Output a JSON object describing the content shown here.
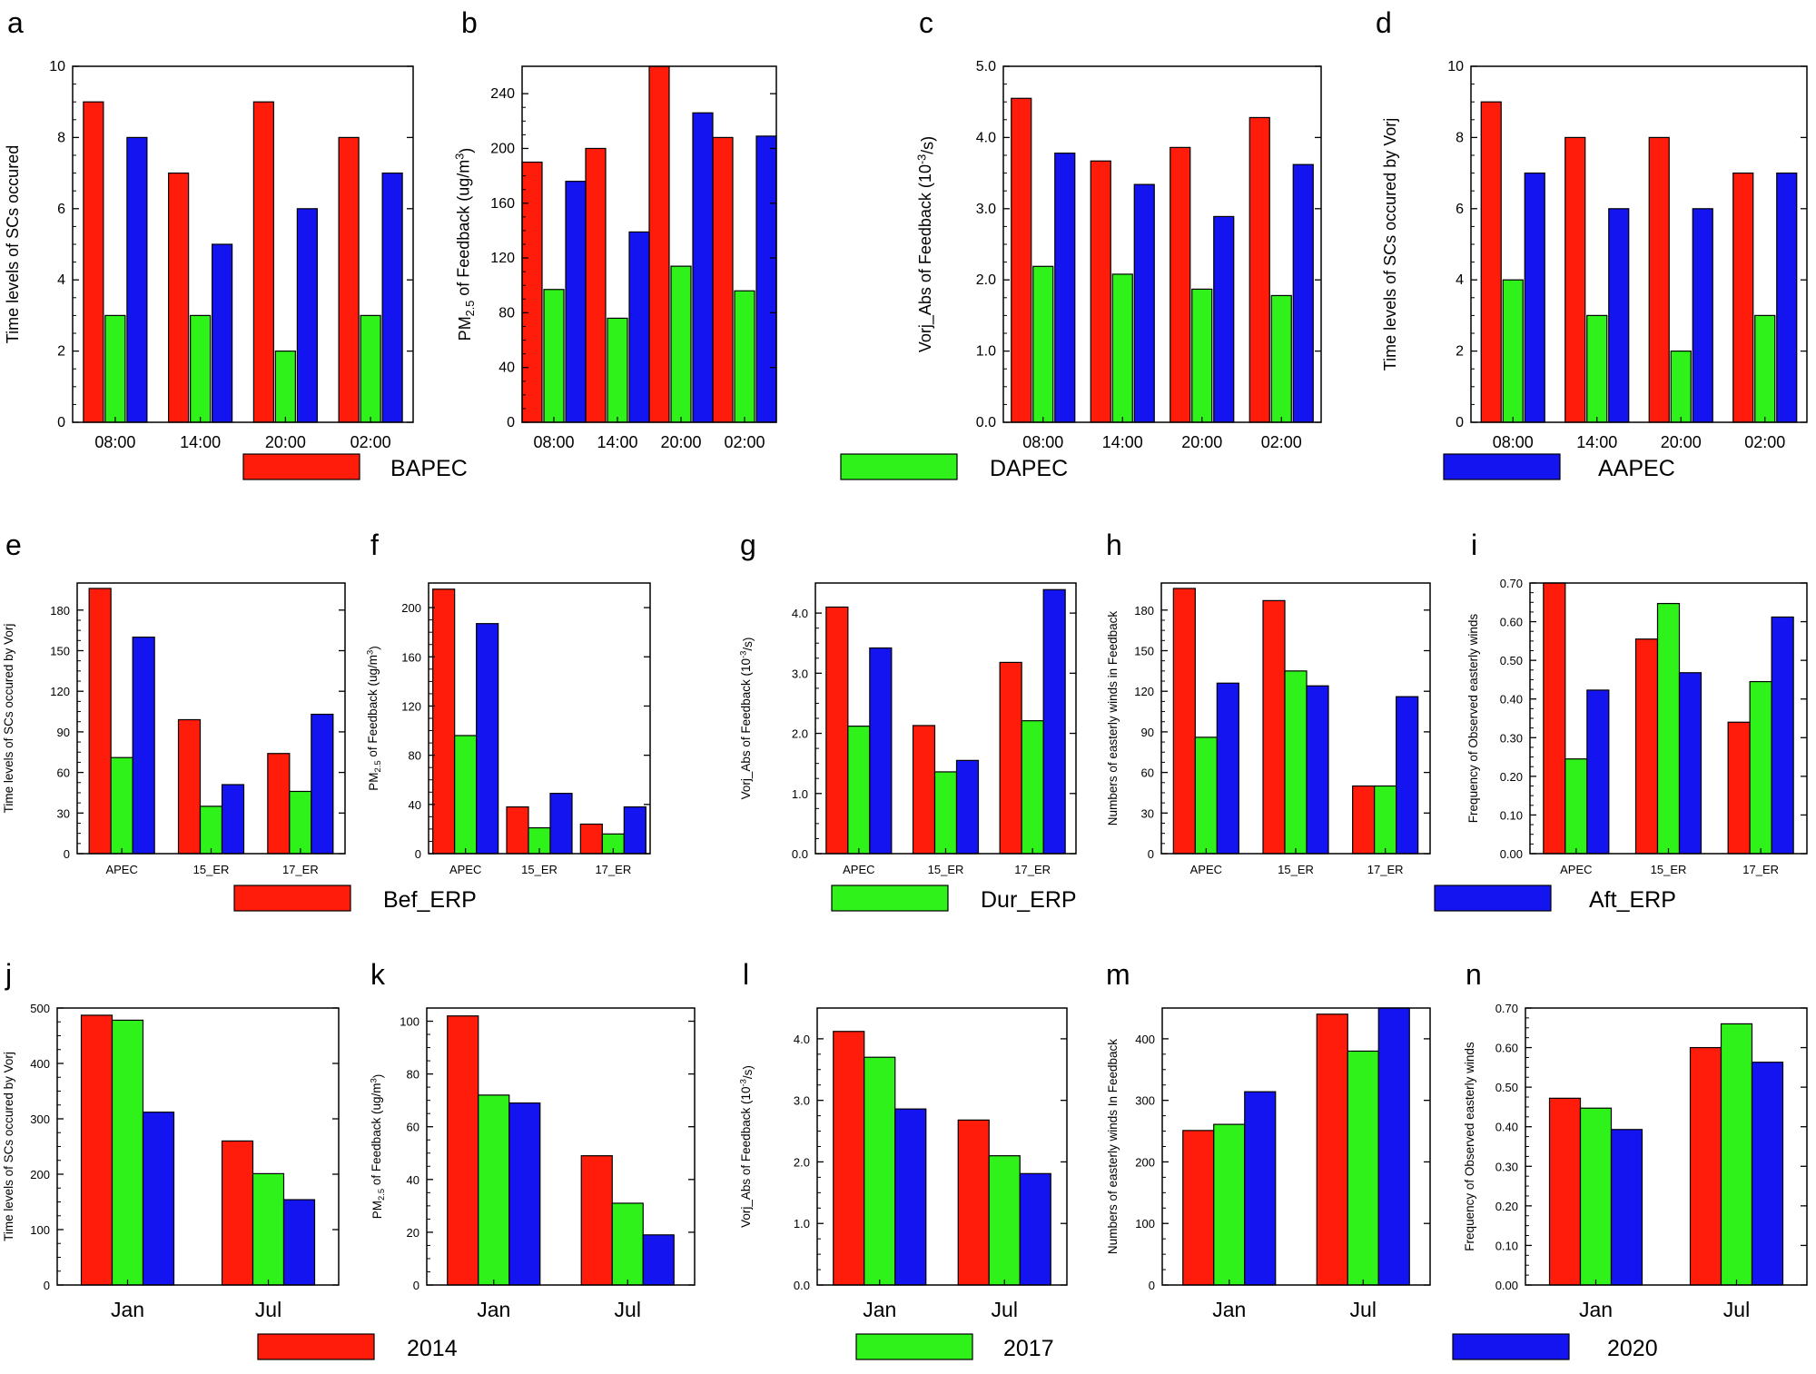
{
  "colors": {
    "red": "#ff1c0a",
    "green": "#2ef21a",
    "blue": "#1414f0"
  },
  "legends": [
    {
      "items": [
        {
          "label": "BAPEC",
          "color": "#ff1c0a"
        },
        {
          "label": "DAPEC",
          "color": "#2ef21a"
        },
        {
          "label": "AAPEC",
          "color": "#1414f0"
        }
      ]
    },
    {
      "items": [
        {
          "label": "Bef_ERP",
          "color": "#ff1c0a"
        },
        {
          "label": "Dur_ERP",
          "color": "#2ef21a"
        },
        {
          "label": "Aft_ERP",
          "color": "#1414f0"
        }
      ]
    },
    {
      "items": [
        {
          "label": "2014",
          "color": "#ff1c0a"
        },
        {
          "label": "2017",
          "color": "#2ef21a"
        },
        {
          "label": "2020",
          "color": "#1414f0"
        }
      ]
    }
  ],
  "chart_data": [
    {
      "panel": "a",
      "type": "bar",
      "ylabel": "Time levels of SCs occured",
      "categories": [
        "08:00",
        "14:00",
        "20:00",
        "02:00"
      ],
      "ylim": [
        0,
        10
      ],
      "yticks": [
        0,
        2,
        4,
        6,
        8,
        10
      ],
      "series": [
        {
          "name": "BAPEC",
          "values": [
            9,
            7,
            9,
            8
          ]
        },
        {
          "name": "DAPEC",
          "values": [
            3,
            3,
            2,
            3
          ]
        },
        {
          "name": "AAPEC",
          "values": [
            8,
            5,
            6,
            7
          ]
        }
      ]
    },
    {
      "panel": "b",
      "type": "bar",
      "ylabel": "PM2.5 of Feedback (ug/m3)",
      "categories": [
        "08:00",
        "14:00",
        "20:00",
        "02:00"
      ],
      "ylim": [
        0,
        260
      ],
      "yticks": [
        0,
        40,
        80,
        120,
        160,
        200,
        240
      ],
      "series": [
        {
          "name": "BAPEC",
          "values": [
            190,
            200,
            260,
            208
          ]
        },
        {
          "name": "DAPEC",
          "values": [
            97,
            76,
            114,
            96
          ]
        },
        {
          "name": "AAPEC",
          "values": [
            176,
            139,
            226,
            209
          ]
        }
      ]
    },
    {
      "panel": "c",
      "type": "bar",
      "ylabel": "Vorj_Abs of Feedback (10-3/s)",
      "categories": [
        "08:00",
        "14:00",
        "20:00",
        "02:00"
      ],
      "ylim": [
        0,
        5.0
      ],
      "yticks": [
        "0.0",
        "1.0",
        "2.0",
        "3.0",
        "4.0",
        "5.0"
      ],
      "series": [
        {
          "name": "BAPEC",
          "values": [
            4.55,
            3.67,
            3.86,
            4.28
          ]
        },
        {
          "name": "DAPEC",
          "values": [
            2.19,
            2.08,
            1.87,
            1.78
          ]
        },
        {
          "name": "AAPEC",
          "values": [
            3.78,
            3.34,
            2.89,
            3.62
          ]
        }
      ]
    },
    {
      "panel": "d",
      "type": "bar",
      "ylabel": "Time levels of SCs occured by Vorj",
      "categories": [
        "08:00",
        "14:00",
        "20:00",
        "02:00"
      ],
      "ylim": [
        0,
        10
      ],
      "yticks": [
        0,
        2,
        4,
        6,
        8,
        10
      ],
      "series": [
        {
          "name": "BAPEC",
          "values": [
            9,
            8,
            8,
            7
          ]
        },
        {
          "name": "DAPEC",
          "values": [
            4,
            3,
            2,
            3
          ]
        },
        {
          "name": "AAPEC",
          "values": [
            7,
            6,
            6,
            7
          ]
        }
      ]
    },
    {
      "panel": "e",
      "type": "bar",
      "ylabel": "Time levels of SCs occured by Vorj",
      "categories": [
        "APEC",
        "15_ER",
        "17_ER"
      ],
      "ylim": [
        0,
        200
      ],
      "yticks": [
        0,
        30,
        60,
        90,
        120,
        150,
        180
      ],
      "series": [
        {
          "name": "Bef_ERP",
          "values": [
            196,
            99,
            74
          ]
        },
        {
          "name": "Dur_ERP",
          "values": [
            71,
            35,
            46
          ]
        },
        {
          "name": "Aft_ERP",
          "values": [
            160,
            51,
            103
          ]
        }
      ]
    },
    {
      "panel": "f",
      "type": "bar",
      "ylabel": "PM2.5 of Feedback (ug/m3)",
      "categories": [
        "APEC",
        "15_ER",
        "17_ER"
      ],
      "ylim": [
        0,
        220
      ],
      "yticks": [
        0,
        40,
        80,
        120,
        160,
        200
      ],
      "series": [
        {
          "name": "Bef_ERP",
          "values": [
            215,
            38,
            24
          ]
        },
        {
          "name": "Dur_ERP",
          "values": [
            96,
            21,
            16
          ]
        },
        {
          "name": "Aft_ERP",
          "values": [
            187,
            49,
            38
          ]
        }
      ]
    },
    {
      "panel": "g",
      "type": "bar",
      "ylabel": "Vorj_Abs of Feedback (10-3/s)",
      "categories": [
        "APEC",
        "15_ER",
        "17_ER"
      ],
      "ylim": [
        0,
        4.5
      ],
      "yticks": [
        "0.0",
        "1.0",
        "2.0",
        "3.0",
        "4.0"
      ],
      "series": [
        {
          "name": "Bef_ERP",
          "values": [
            4.1,
            2.13,
            3.18
          ]
        },
        {
          "name": "Dur_ERP",
          "values": [
            2.12,
            1.36,
            2.21
          ]
        },
        {
          "name": "Aft_ERP",
          "values": [
            3.42,
            1.55,
            4.39
          ]
        }
      ]
    },
    {
      "panel": "h",
      "type": "bar",
      "ylabel": "Numbers of easterly winds in Feedback",
      "categories": [
        "APEC",
        "15_ER",
        "17_ER"
      ],
      "ylim": [
        0,
        200
      ],
      "yticks": [
        0,
        30,
        60,
        90,
        120,
        150,
        180
      ],
      "series": [
        {
          "name": "Bef_ERP",
          "values": [
            196,
            187,
            50
          ]
        },
        {
          "name": "Dur_ERP",
          "values": [
            86,
            135,
            50
          ]
        },
        {
          "name": "Aft_ERP",
          "values": [
            126,
            124,
            116
          ]
        }
      ]
    },
    {
      "panel": "i",
      "type": "bar",
      "ylabel": "Frequency of Observed easterly winds",
      "categories": [
        "APEC",
        "15_ER",
        "17_ER"
      ],
      "ylim": [
        0,
        0.7
      ],
      "yticks": [
        "0.00",
        "0.10",
        "0.20",
        "0.30",
        "0.40",
        "0.50",
        "0.60",
        "0.70"
      ],
      "series": [
        {
          "name": "Bef_ERP",
          "values": [
            0.7,
            0.555,
            0.34
          ]
        },
        {
          "name": "Dur_ERP",
          "values": [
            0.245,
            0.647,
            0.445
          ]
        },
        {
          "name": "Aft_ERP",
          "values": [
            0.423,
            0.468,
            0.612
          ]
        }
      ]
    },
    {
      "panel": "j",
      "type": "bar",
      "ylabel": "Time levels of SCs occured by Vorj",
      "categories": [
        "Jan",
        "Jul"
      ],
      "ylim": [
        0,
        500
      ],
      "yticks": [
        0,
        100,
        200,
        300,
        400,
        500
      ],
      "series": [
        {
          "name": "2014",
          "values": [
            487,
            260
          ]
        },
        {
          "name": "2017",
          "values": [
            478,
            201
          ]
        },
        {
          "name": "2020",
          "values": [
            312,
            154
          ]
        }
      ]
    },
    {
      "panel": "k",
      "type": "bar",
      "ylabel": "PM2.5 of Feedback (ug/m3)",
      "categories": [
        "Jan",
        "Jul"
      ],
      "ylim": [
        0,
        105
      ],
      "yticks": [
        0,
        20,
        40,
        60,
        80,
        100
      ],
      "series": [
        {
          "name": "2014",
          "values": [
            102,
            49
          ]
        },
        {
          "name": "2017",
          "values": [
            72,
            31
          ]
        },
        {
          "name": "2020",
          "values": [
            69,
            19
          ]
        }
      ]
    },
    {
      "panel": "l",
      "type": "bar",
      "ylabel": "Vorj_Abs of Feedback (10-3/s)",
      "categories": [
        "Jan",
        "Jul"
      ],
      "ylim": [
        0,
        4.5
      ],
      "yticks": [
        "0.0",
        "1.0",
        "2.0",
        "3.0",
        "4.0"
      ],
      "series": [
        {
          "name": "2014",
          "values": [
            4.12,
            2.68
          ]
        },
        {
          "name": "2017",
          "values": [
            3.7,
            2.1
          ]
        },
        {
          "name": "2020",
          "values": [
            2.86,
            1.81
          ]
        }
      ]
    },
    {
      "panel": "m",
      "type": "bar",
      "ylabel": "Numbers of easterly winds In Feedback",
      "categories": [
        "Jan",
        "Jul"
      ],
      "ylim": [
        0,
        450
      ],
      "yticks": [
        0,
        100,
        200,
        300,
        400
      ],
      "series": [
        {
          "name": "2014",
          "values": [
            251,
            440
          ]
        },
        {
          "name": "2017",
          "values": [
            261,
            380
          ]
        },
        {
          "name": "2020",
          "values": [
            314,
            450
          ]
        }
      ]
    },
    {
      "panel": "n",
      "type": "bar",
      "ylabel": "Frequency of Observed easterly winds",
      "categories": [
        "Jan",
        "Jul"
      ],
      "ylim": [
        0,
        0.7
      ],
      "yticks": [
        "0.00",
        "0.10",
        "0.20",
        "0.30",
        "0.40",
        "0.50",
        "0.60",
        "0.70"
      ],
      "series": [
        {
          "name": "2014",
          "values": [
            0.472,
            0.6
          ]
        },
        {
          "name": "2017",
          "values": [
            0.447,
            0.66
          ]
        },
        {
          "name": "2020",
          "values": [
            0.393,
            0.563
          ]
        }
      ]
    }
  ]
}
